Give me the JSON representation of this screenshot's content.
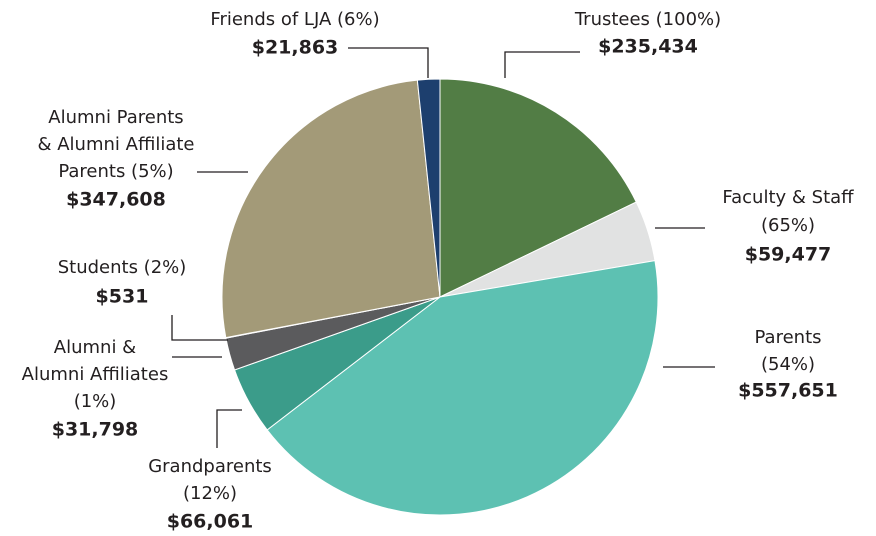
{
  "chart_data": {
    "type": "pie",
    "labels": [
      [
        "Trustees (100%)"
      ],
      [
        "Faculty & Staff",
        "(65%)"
      ],
      [
        "Parents",
        "(54%)"
      ],
      [
        "Grandparents",
        "(12%)"
      ],
      [
        "Alumni &",
        "Alumni Affiliates",
        "(1%)"
      ],
      [
        "Students (2%)"
      ],
      [
        "Alumni Parents",
        "& Alumni Affiliate",
        "Parents (5%)"
      ],
      [
        "Friends of LJA (6%)"
      ]
    ],
    "values": [
      235434,
      59477,
      557651,
      66061,
      31798,
      531,
      347608,
      21863
    ],
    "value_labels": [
      "$235,434",
      "$59,477",
      "$557,651",
      "$66,061",
      "$31,798",
      "$531",
      "$347,608",
      "$21,863"
    ],
    "colors": [
      "#527d45",
      "#e1e2e2",
      "#5dc1b2",
      "#3b9c8a",
      "#5b5b5d",
      "#8a8a8a",
      "#a39a78",
      "#1d3f6e"
    ]
  }
}
